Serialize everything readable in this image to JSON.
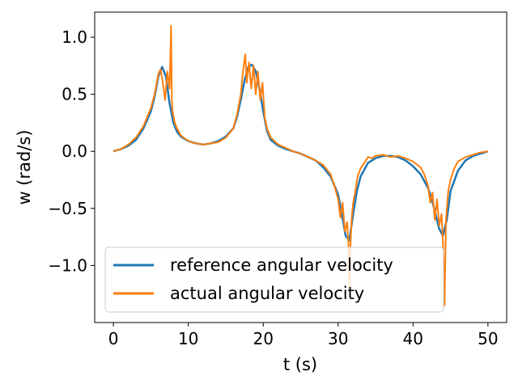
{
  "chart_data": {
    "type": "line",
    "title": "",
    "xlabel": "t (s)",
    "ylabel": "w (rad/s)",
    "xlim": [
      -2.5,
      52.5
    ],
    "ylim": [
      -1.5,
      1.22
    ],
    "xticks": [
      0,
      10,
      20,
      30,
      40,
      50
    ],
    "yticks": [
      1.0,
      0.5,
      0.0,
      -0.5,
      -1.0
    ],
    "ytick_labels": [
      "1.0",
      "0.5",
      "0.0",
      "−0.5",
      "−1.0"
    ],
    "grid": false,
    "legend_position": "lower-left",
    "series": [
      {
        "name": "reference angular velocity",
        "color": "#1f77b4",
        "x": [
          0,
          1,
          2,
          3,
          4,
          5,
          5.5,
          6,
          6.5,
          7,
          7.5,
          8,
          8.5,
          9,
          10,
          11,
          12,
          13,
          14,
          15,
          16,
          16.5,
          17,
          17.5,
          18,
          18.5,
          19,
          19.5,
          20,
          20.5,
          21,
          22,
          23,
          24,
          25,
          26,
          27,
          28,
          29,
          30,
          30.5,
          31,
          31.5,
          32,
          32.5,
          33,
          34,
          35,
          36,
          37,
          38,
          39,
          40,
          41,
          42,
          42.5,
          43,
          43.5,
          44,
          44.5,
          45,
          46,
          47,
          48,
          49,
          50
        ],
        "y": [
          0.0,
          0.02,
          0.05,
          0.1,
          0.2,
          0.35,
          0.48,
          0.66,
          0.74,
          0.66,
          0.42,
          0.25,
          0.17,
          0.13,
          0.09,
          0.07,
          0.06,
          0.07,
          0.09,
          0.13,
          0.2,
          0.3,
          0.45,
          0.62,
          0.74,
          0.76,
          0.7,
          0.55,
          0.35,
          0.18,
          0.1,
          0.05,
          0.02,
          0.0,
          -0.02,
          -0.05,
          -0.08,
          -0.14,
          -0.22,
          -0.38,
          -0.55,
          -0.74,
          -0.78,
          -0.55,
          -0.35,
          -0.22,
          -0.1,
          -0.06,
          -0.04,
          -0.04,
          -0.05,
          -0.08,
          -0.13,
          -0.2,
          -0.32,
          -0.42,
          -0.55,
          -0.68,
          -0.74,
          -0.6,
          -0.35,
          -0.17,
          -0.08,
          -0.04,
          -0.02,
          0.0
        ]
      },
      {
        "name": "actual angular velocity",
        "color": "#ff7f0e",
        "x": [
          0,
          1,
          2,
          3,
          4,
          5,
          5.5,
          6,
          6.3,
          6.6,
          6.9,
          7.2,
          7.5,
          7.7,
          7.8,
          7.9,
          8.2,
          8.5,
          9,
          10,
          11,
          12,
          13,
          14,
          15,
          16,
          16.5,
          17,
          17.3,
          17.6,
          17.8,
          18.1,
          18.4,
          18.7,
          19,
          19.3,
          19.6,
          19.9,
          20.2,
          20.5,
          21,
          22,
          23,
          24,
          25,
          26,
          27,
          28,
          29,
          29.5,
          30,
          30.3,
          30.6,
          30.9,
          31.2,
          31.4,
          31.5,
          31.6,
          31.8,
          32,
          32.3,
          32.6,
          33,
          33.5,
          34,
          34.5,
          35,
          36,
          37,
          38,
          39,
          40,
          41,
          41.5,
          42,
          42.3,
          42.6,
          42.9,
          43.2,
          43.5,
          43.8,
          44.0,
          44.1,
          44.2,
          44.4,
          44.7,
          45,
          45.5,
          46,
          47,
          48,
          49,
          50
        ],
        "y": [
          0.0,
          0.02,
          0.06,
          0.12,
          0.22,
          0.38,
          0.5,
          0.68,
          0.72,
          0.6,
          0.45,
          0.7,
          0.55,
          1.1,
          0.45,
          0.35,
          0.25,
          0.2,
          0.14,
          0.09,
          0.07,
          0.06,
          0.07,
          0.08,
          0.12,
          0.2,
          0.32,
          0.5,
          0.7,
          0.85,
          0.6,
          0.78,
          0.55,
          0.75,
          0.5,
          0.7,
          0.45,
          0.6,
          0.3,
          0.2,
          0.12,
          0.06,
          0.03,
          0.0,
          -0.02,
          -0.05,
          -0.08,
          -0.12,
          -0.2,
          -0.3,
          -0.42,
          -0.58,
          -0.45,
          -0.7,
          -0.62,
          -0.85,
          -1.2,
          -0.9,
          -0.6,
          -0.45,
          -0.35,
          -0.22,
          -0.15,
          -0.1,
          -0.05,
          -0.06,
          -0.04,
          -0.03,
          -0.05,
          -0.04,
          -0.06,
          -0.09,
          -0.14,
          -0.2,
          -0.3,
          -0.45,
          -0.36,
          -0.6,
          -0.42,
          -0.65,
          -0.55,
          -0.8,
          -1.0,
          -1.35,
          -0.6,
          -0.35,
          -0.25,
          -0.15,
          -0.09,
          -0.05,
          -0.03,
          -0.01,
          0.0
        ]
      }
    ]
  }
}
